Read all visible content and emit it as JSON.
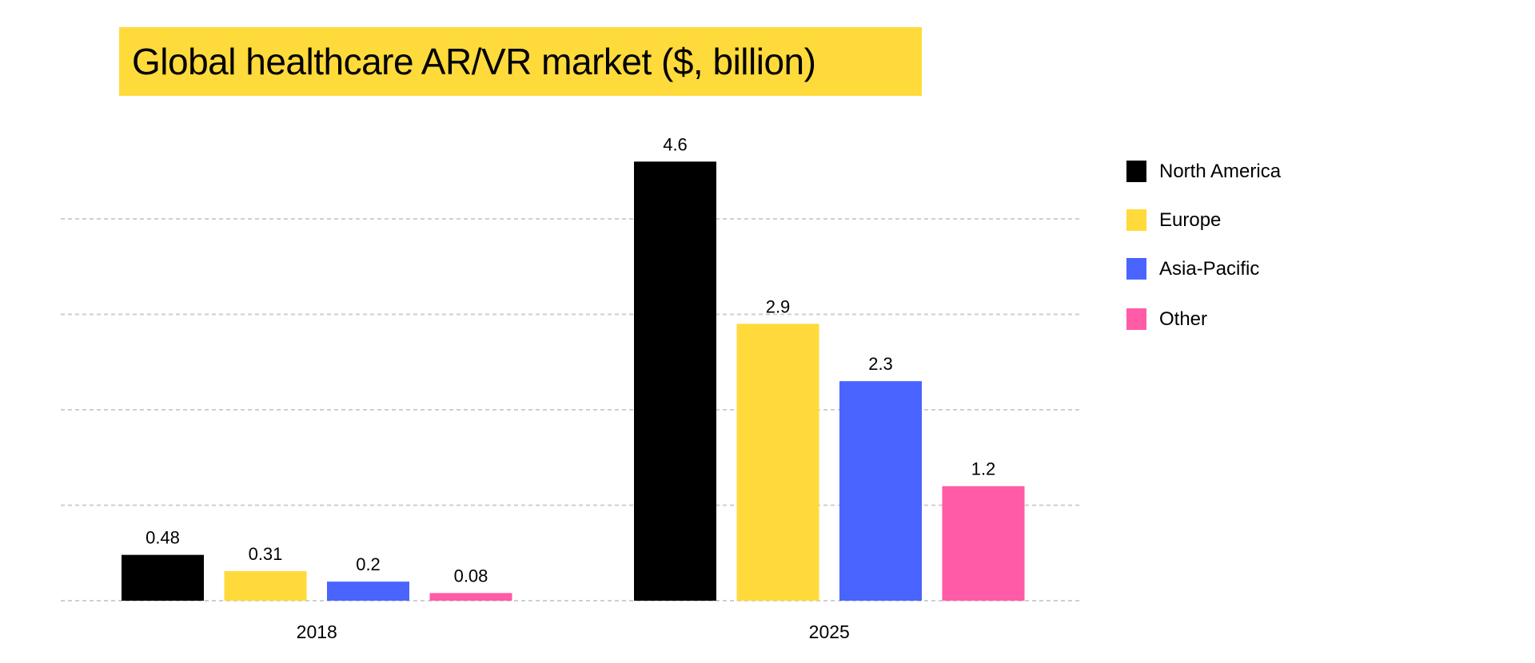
{
  "chart_data": {
    "type": "bar",
    "title": "Global healthcare AR/VR market ($, billion)",
    "categories": [
      "2018",
      "2025"
    ],
    "series": [
      {
        "name": "North America",
        "color": "#000000",
        "values": [
          0.48,
          4.6
        ]
      },
      {
        "name": "Europe",
        "color": "#FFDA3A",
        "values": [
          0.31,
          2.9
        ]
      },
      {
        "name": "Asia-Pacific",
        "color": "#4A64FF",
        "values": [
          0.2,
          2.3
        ]
      },
      {
        "name": "Other",
        "color": "#FF5BA6",
        "values": [
          0.08,
          1.2
        ]
      }
    ],
    "data_labels": [
      [
        "0.48",
        "4.6"
      ],
      [
        "0.31",
        "2.9"
      ],
      [
        "0.2",
        "2.3"
      ],
      [
        "0.08",
        "1.2"
      ]
    ],
    "ylim": [
      0,
      4.6
    ],
    "grid": true,
    "gridlines": [
      0,
      1,
      2,
      3,
      4
    ],
    "y_tick_labels_shown": false,
    "legend": "right",
    "title_background": "#FFDA3B"
  }
}
